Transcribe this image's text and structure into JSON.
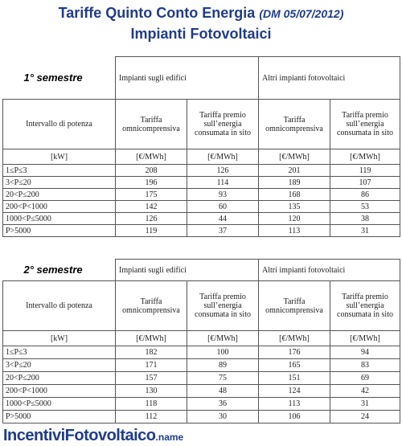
{
  "header": {
    "title_main": "Tariffe Quinto Conto Energia",
    "title_sub": "(DM 05/07/2012)",
    "title_line2": "Impianti Fotovoltaici"
  },
  "columns": {
    "group_edifici": "Impianti sugli edifici",
    "group_altri": "Altri impianti fotovoltaici",
    "intervallo": "Intervallo di potenza",
    "tariffa_omni": "Tariffa omnicomprensiva",
    "tariffa_premio": "Tariffa premio sull’energia consumata in sito",
    "unit_kw": "[kW]",
    "unit_eur": "[€/MWh]"
  },
  "semesters": [
    {
      "label": "1° semestre",
      "rows": [
        {
          "range": "1≤P≤3",
          "ed_omni": "208",
          "ed_premio": "126",
          "al_omni": "201",
          "al_premio": "119"
        },
        {
          "range": "3<P≤20",
          "ed_omni": "196",
          "ed_premio": "114",
          "al_omni": "189",
          "al_premio": "107"
        },
        {
          "range": "20<P≤200",
          "ed_omni": "175",
          "ed_premio": "93",
          "al_omni": "168",
          "al_premio": "86"
        },
        {
          "range": "200<P<1000",
          "ed_omni": "142",
          "ed_premio": "60",
          "al_omni": "135",
          "al_premio": "53"
        },
        {
          "range": "1000<P≤5000",
          "ed_omni": "126",
          "ed_premio": "44",
          "al_omni": "120",
          "al_premio": "38"
        },
        {
          "range": "P>5000",
          "ed_omni": "119",
          "ed_premio": "37",
          "al_omni": "113",
          "al_premio": "31"
        }
      ]
    },
    {
      "label": "2° semestre",
      "rows": [
        {
          "range": "1≤P≤3",
          "ed_omni": "182",
          "ed_premio": "100",
          "al_omni": "176",
          "al_premio": "94"
        },
        {
          "range": "3<P≤20",
          "ed_omni": "171",
          "ed_premio": "89",
          "al_omni": "165",
          "al_premio": "83"
        },
        {
          "range": "20<P≤200",
          "ed_omni": "157",
          "ed_premio": "75",
          "al_omni": "151",
          "al_premio": "69"
        },
        {
          "range": "200<P<1000",
          "ed_omni": "130",
          "ed_premio": "48",
          "al_omni": "124",
          "al_premio": "42"
        },
        {
          "range": "1000<P≤5000",
          "ed_omni": "118",
          "ed_premio": "36",
          "al_omni": "113",
          "al_premio": "31"
        },
        {
          "range": "P>5000",
          "ed_omni": "112",
          "ed_premio": "30",
          "al_omni": "106",
          "al_premio": "24"
        }
      ]
    }
  ],
  "footer": {
    "brand": "IncentiviFotovoltaico",
    "brand_domain": ".name"
  }
}
